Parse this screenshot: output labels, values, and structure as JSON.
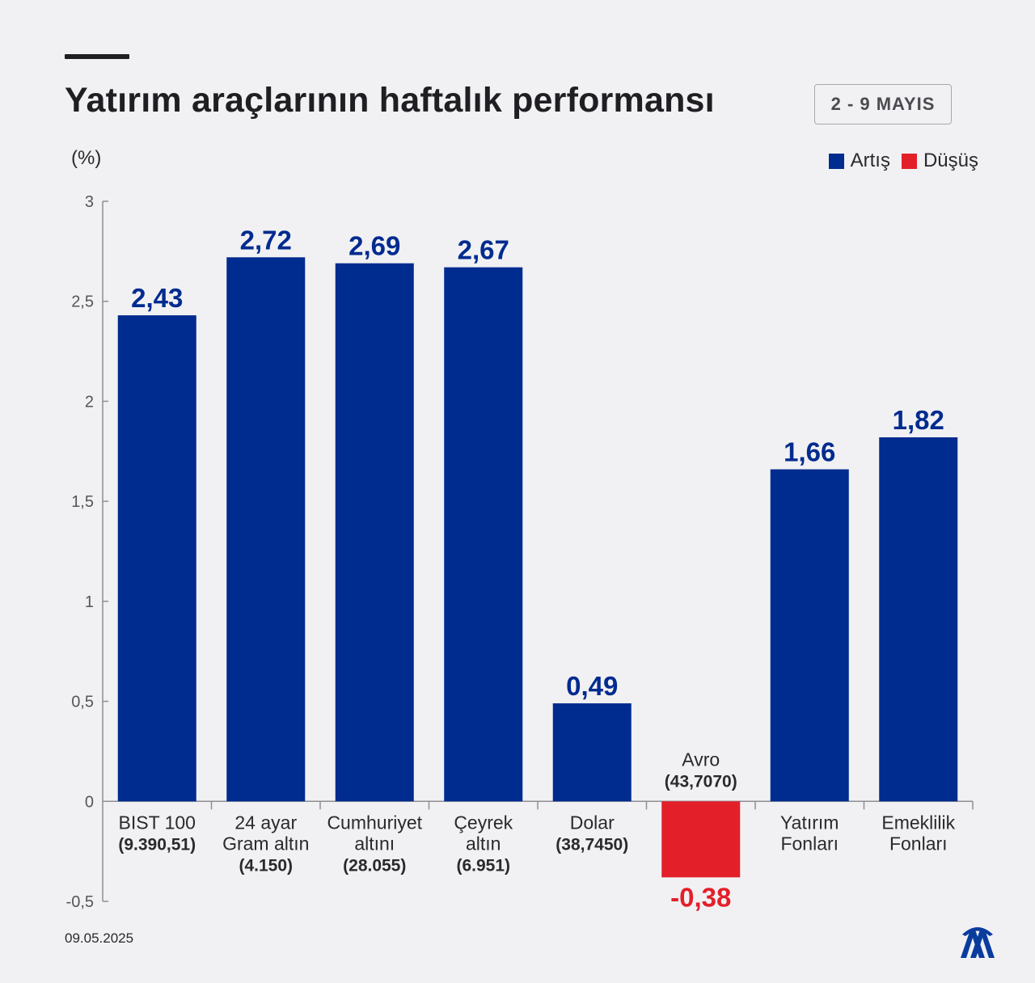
{
  "header": {
    "title": "Yatırım araçlarının haftalık performansı",
    "date_range": "2 - 9 MAYIS"
  },
  "unit_label": "(%)",
  "legend": {
    "increase": {
      "label": "Artış",
      "color": "#002b8f"
    },
    "decrease": {
      "label": "Düşüş",
      "color": "#e3202a"
    }
  },
  "footer": {
    "date": "09.05.2025",
    "logo": "AA"
  },
  "chart_data": {
    "type": "bar",
    "ylim": [
      -0.5,
      3
    ],
    "yticks": [
      3,
      2.5,
      2,
      1.5,
      1,
      0.5,
      0,
      -0.5
    ],
    "ytick_labels": [
      "3",
      "2,5",
      "2",
      "1,5",
      "1",
      "0,5",
      "0",
      "-0,5"
    ],
    "grid": false,
    "legend_position": "top-right",
    "categories": [
      {
        "lines": [
          "BIST 100",
          "(9.390,51)"
        ]
      },
      {
        "lines": [
          "24 ayar",
          "Gram altın",
          "(4.150)"
        ]
      },
      {
        "lines": [
          "Cumhuriyet",
          "altını",
          "(28.055)"
        ]
      },
      {
        "lines": [
          "Çeyrek",
          "altın",
          "(6.951)"
        ]
      },
      {
        "lines": [
          "Dolar",
          "(38,7450)"
        ]
      },
      {
        "lines": [
          "Avro",
          "(43,7070)"
        ]
      },
      {
        "lines": [
          "Yatırım",
          "Fonları"
        ]
      },
      {
        "lines": [
          "Emeklilik",
          "Fonları"
        ]
      }
    ],
    "values": [
      2.43,
      2.72,
      2.69,
      2.67,
      0.49,
      -0.38,
      1.66,
      1.82
    ],
    "value_labels": [
      "2,43",
      "2,72",
      "2,69",
      "2,67",
      "0,49",
      "-0,38",
      "1,66",
      "1,82"
    ]
  }
}
